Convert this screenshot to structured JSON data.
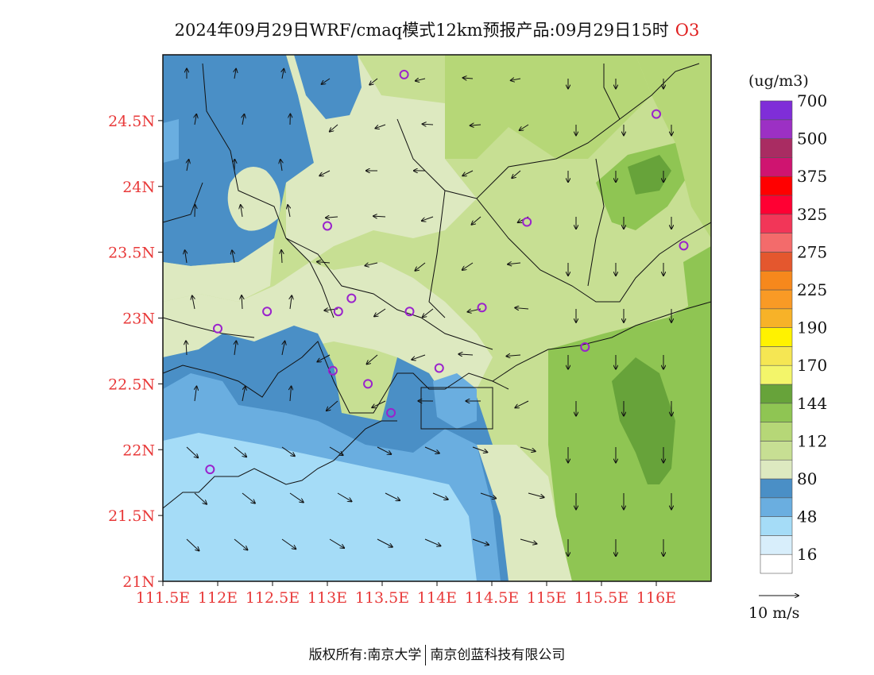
{
  "title": {
    "text": "2024年09月29日WRF/cmaq模式12km预报产品:09月29日15时",
    "pollutant": "O3"
  },
  "axes": {
    "lat_labels": [
      "24.5N",
      "24N",
      "23.5N",
      "23N",
      "22.5N",
      "22N",
      "21.5N",
      "21N"
    ],
    "lon_labels": [
      "111.5E",
      "112E",
      "112.5E",
      "113E",
      "113.5E",
      "114E",
      "114.5E",
      "115E",
      "115.5E",
      "116E"
    ],
    "lat_range": [
      21,
      25
    ],
    "lon_range": [
      111.5,
      116.5
    ]
  },
  "legend": {
    "unit": "(ug/m3)",
    "colors": [
      "#ffffff",
      "#d8eefb",
      "#a5dcf7",
      "#6aaee0",
      "#4a8fc6",
      "#dde9c0",
      "#c7df93",
      "#b6d777",
      "#8fc553",
      "#67a33a",
      "#f3f56a",
      "#f5e653",
      "#fff200",
      "#f7b228",
      "#f99a25",
      "#f6881c",
      "#e4572e",
      "#f36b6b",
      "#f23658",
      "#ff0033",
      "#ff0000",
      "#cf1470",
      "#a92c62",
      "#9c30c4",
      "#7f2ed8"
    ],
    "labels": [
      "16",
      "48",
      "80",
      "112",
      "144",
      "170",
      "190",
      "225",
      "275",
      "325",
      "375",
      "500",
      "700"
    ],
    "wind_ref": "10 m/s"
  },
  "stations": [
    {
      "lon": 113.7,
      "lat": 24.85
    },
    {
      "lon": 116.0,
      "lat": 24.55
    },
    {
      "lon": 113.0,
      "lat": 23.7
    },
    {
      "lon": 114.82,
      "lat": 23.73
    },
    {
      "lon": 116.25,
      "lat": 23.55
    },
    {
      "lon": 112.45,
      "lat": 23.05
    },
    {
      "lon": 112.0,
      "lat": 22.92
    },
    {
      "lon": 113.1,
      "lat": 23.05
    },
    {
      "lon": 113.22,
      "lat": 23.15
    },
    {
      "lon": 113.75,
      "lat": 23.05
    },
    {
      "lon": 114.41,
      "lat": 23.08
    },
    {
      "lon": 115.35,
      "lat": 22.78
    },
    {
      "lon": 114.02,
      "lat": 22.62
    },
    {
      "lon": 113.05,
      "lat": 22.6
    },
    {
      "lon": 113.37,
      "lat": 22.5
    },
    {
      "lon": 113.58,
      "lat": 22.28
    },
    {
      "lon": 111.93,
      "lat": 21.85
    }
  ],
  "footer": {
    "left": "版权所有:南京大学",
    "right": "南京创蓝科技有限公司"
  }
}
